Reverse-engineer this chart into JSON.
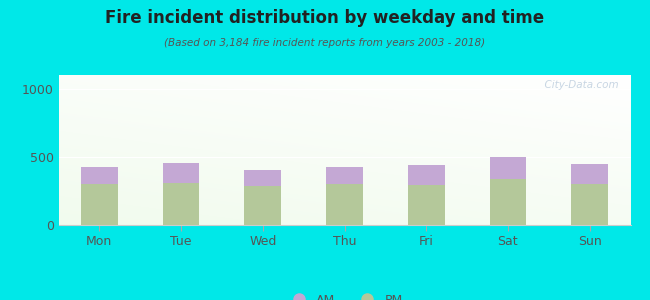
{
  "days": [
    "Mon",
    "Tue",
    "Wed",
    "Thu",
    "Fri",
    "Sat",
    "Sun"
  ],
  "pm_values": [
    300,
    305,
    288,
    300,
    293,
    338,
    303
  ],
  "am_values": [
    125,
    150,
    112,
    128,
    145,
    163,
    148
  ],
  "am_color": "#c4a8d4",
  "pm_color": "#b4c89a",
  "title": "Fire incident distribution by weekday and time",
  "subtitle": "(Based on 3,184 fire incident reports from years 2003 - 2018)",
  "ylim": [
    0,
    1100
  ],
  "yticks": [
    0,
    500,
    1000
  ],
  "background_color": "#00e8e8",
  "bar_width": 0.45,
  "watermark": "  City-Data.com"
}
